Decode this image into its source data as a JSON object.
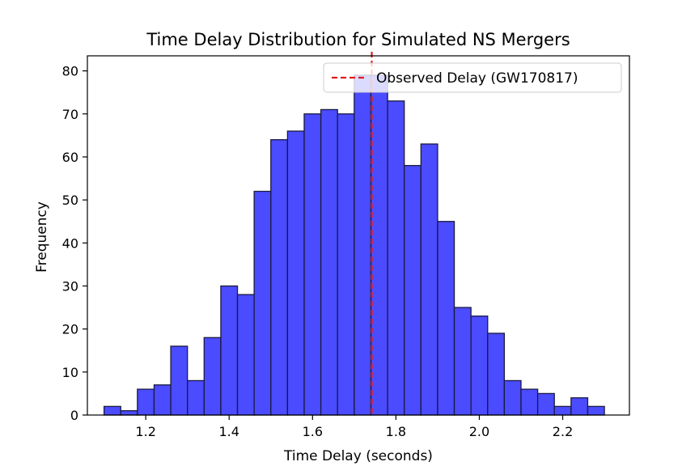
{
  "chart_data": {
    "type": "bar",
    "title": "Time Delay Distribution for Simulated NS Mergers",
    "xlabel": "Time Delay (seconds)",
    "ylabel": "Frequency",
    "xlim": [
      1.06,
      2.36
    ],
    "ylim": [
      0,
      83.5
    ],
    "xticks": [
      "1.2",
      "1.4",
      "1.6",
      "1.8",
      "2.0",
      "2.2"
    ],
    "yticks": [
      "0",
      "10",
      "20",
      "30",
      "40",
      "50",
      "60",
      "70",
      "80"
    ],
    "grid": false,
    "legend_position": "top-right",
    "bin_edges": [
      1.1,
      1.14,
      1.18,
      1.22,
      1.26,
      1.3,
      1.34,
      1.38,
      1.42,
      1.46,
      1.5,
      1.54,
      1.58,
      1.62,
      1.66,
      1.7,
      1.74,
      1.78,
      1.82,
      1.86,
      1.9,
      1.94,
      1.98,
      2.02,
      2.06,
      2.1,
      2.14,
      2.18,
      2.22,
      2.26,
      2.3
    ],
    "values": [
      2,
      1,
      6,
      7,
      16,
      8,
      18,
      30,
      28,
      52,
      64,
      66,
      70,
      71,
      70,
      79,
      79,
      73,
      58,
      63,
      45,
      25,
      23,
      19,
      8,
      6,
      5,
      2,
      4,
      2
    ],
    "bar_color": "#4b4bff",
    "bar_edge_color": "#1a1a40",
    "reference_line": {
      "x": 1.742,
      "label": "Observed Delay (GW170817)",
      "color": "#e41a1c",
      "style": "dashed"
    }
  }
}
